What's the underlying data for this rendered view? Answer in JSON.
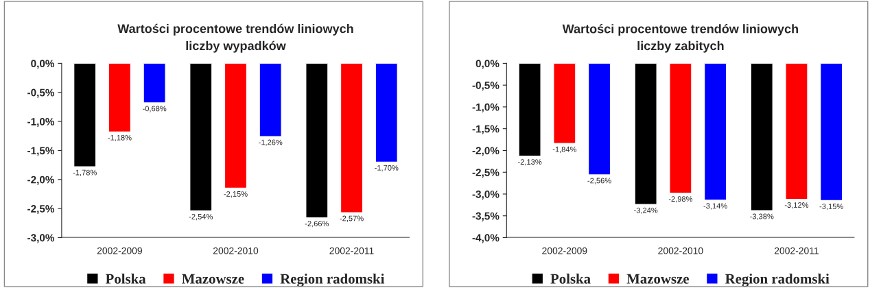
{
  "chart_data": [
    {
      "type": "bar",
      "title": "Wartości procentowe trendów liniowych\nliczby wypadków",
      "categories": [
        "2002-2009",
        "2002-2010",
        "2002-2011"
      ],
      "series": [
        {
          "name": "Polska",
          "color": "#000000",
          "values": [
            -1.78,
            -2.54,
            -2.66
          ],
          "value_labels": [
            "-1,78%",
            "-2,54%",
            "-2,66%"
          ]
        },
        {
          "name": "Mazowsze",
          "color": "#ff0000",
          "values": [
            -1.18,
            -2.15,
            -2.57
          ],
          "value_labels": [
            "-1,18%",
            "-2,15%",
            "-2,57%"
          ]
        },
        {
          "name": "Region radomski",
          "color": "#0000ff",
          "values": [
            -0.68,
            -1.26,
            -1.7
          ],
          "value_labels": [
            "-0,68%",
            "-1,26%",
            "-1,70%"
          ]
        }
      ],
      "ylim": [
        -3.0,
        0.0
      ],
      "yticks": [
        {
          "value": 0.0,
          "label": "0,0%"
        },
        {
          "value": -0.5,
          "label": "-0,5%"
        },
        {
          "value": -1.0,
          "label": "-1,0%"
        },
        {
          "value": -1.5,
          "label": "-1,5%"
        },
        {
          "value": -2.0,
          "label": "-2,0%"
        },
        {
          "value": -2.5,
          "label": "-2,5%"
        },
        {
          "value": -3.0,
          "label": "-3,0%"
        }
      ],
      "grid": false,
      "legend": "bottom"
    },
    {
      "type": "bar",
      "title": "Wartości procentowe trendów liniowych\nliczby zabitych",
      "categories": [
        "2002-2009",
        "2002-2010",
        "2002-2011"
      ],
      "series": [
        {
          "name": "Polska",
          "color": "#000000",
          "values": [
            -2.13,
            -3.24,
            -3.38
          ],
          "value_labels": [
            "-2,13%",
            "-3,24%",
            "-3,38%"
          ]
        },
        {
          "name": "Mazowsze",
          "color": "#ff0000",
          "values": [
            -1.84,
            -2.98,
            -3.12
          ],
          "value_labels": [
            "-1,84%",
            "-2,98%",
            "-3,12%"
          ]
        },
        {
          "name": "Region radomski",
          "color": "#0000ff",
          "values": [
            -2.56,
            -3.14,
            -3.15
          ],
          "value_labels": [
            "-2,56%",
            "-3,14%",
            "-3,15%"
          ]
        }
      ],
      "ylim": [
        -4.0,
        0.0
      ],
      "yticks": [
        {
          "value": 0.0,
          "label": "0,0%"
        },
        {
          "value": -0.5,
          "label": "-0,5%"
        },
        {
          "value": -1.0,
          "label": "-1,0%"
        },
        {
          "value": -1.5,
          "label": "-1,5%"
        },
        {
          "value": -2.0,
          "label": "-2,0%"
        },
        {
          "value": -2.5,
          "label": "-2,5%"
        },
        {
          "value": -3.0,
          "label": "-3,0%"
        },
        {
          "value": -3.5,
          "label": "-3,5%"
        },
        {
          "value": -4.0,
          "label": "-4,0%"
        }
      ],
      "grid": false,
      "legend": "bottom"
    }
  ]
}
